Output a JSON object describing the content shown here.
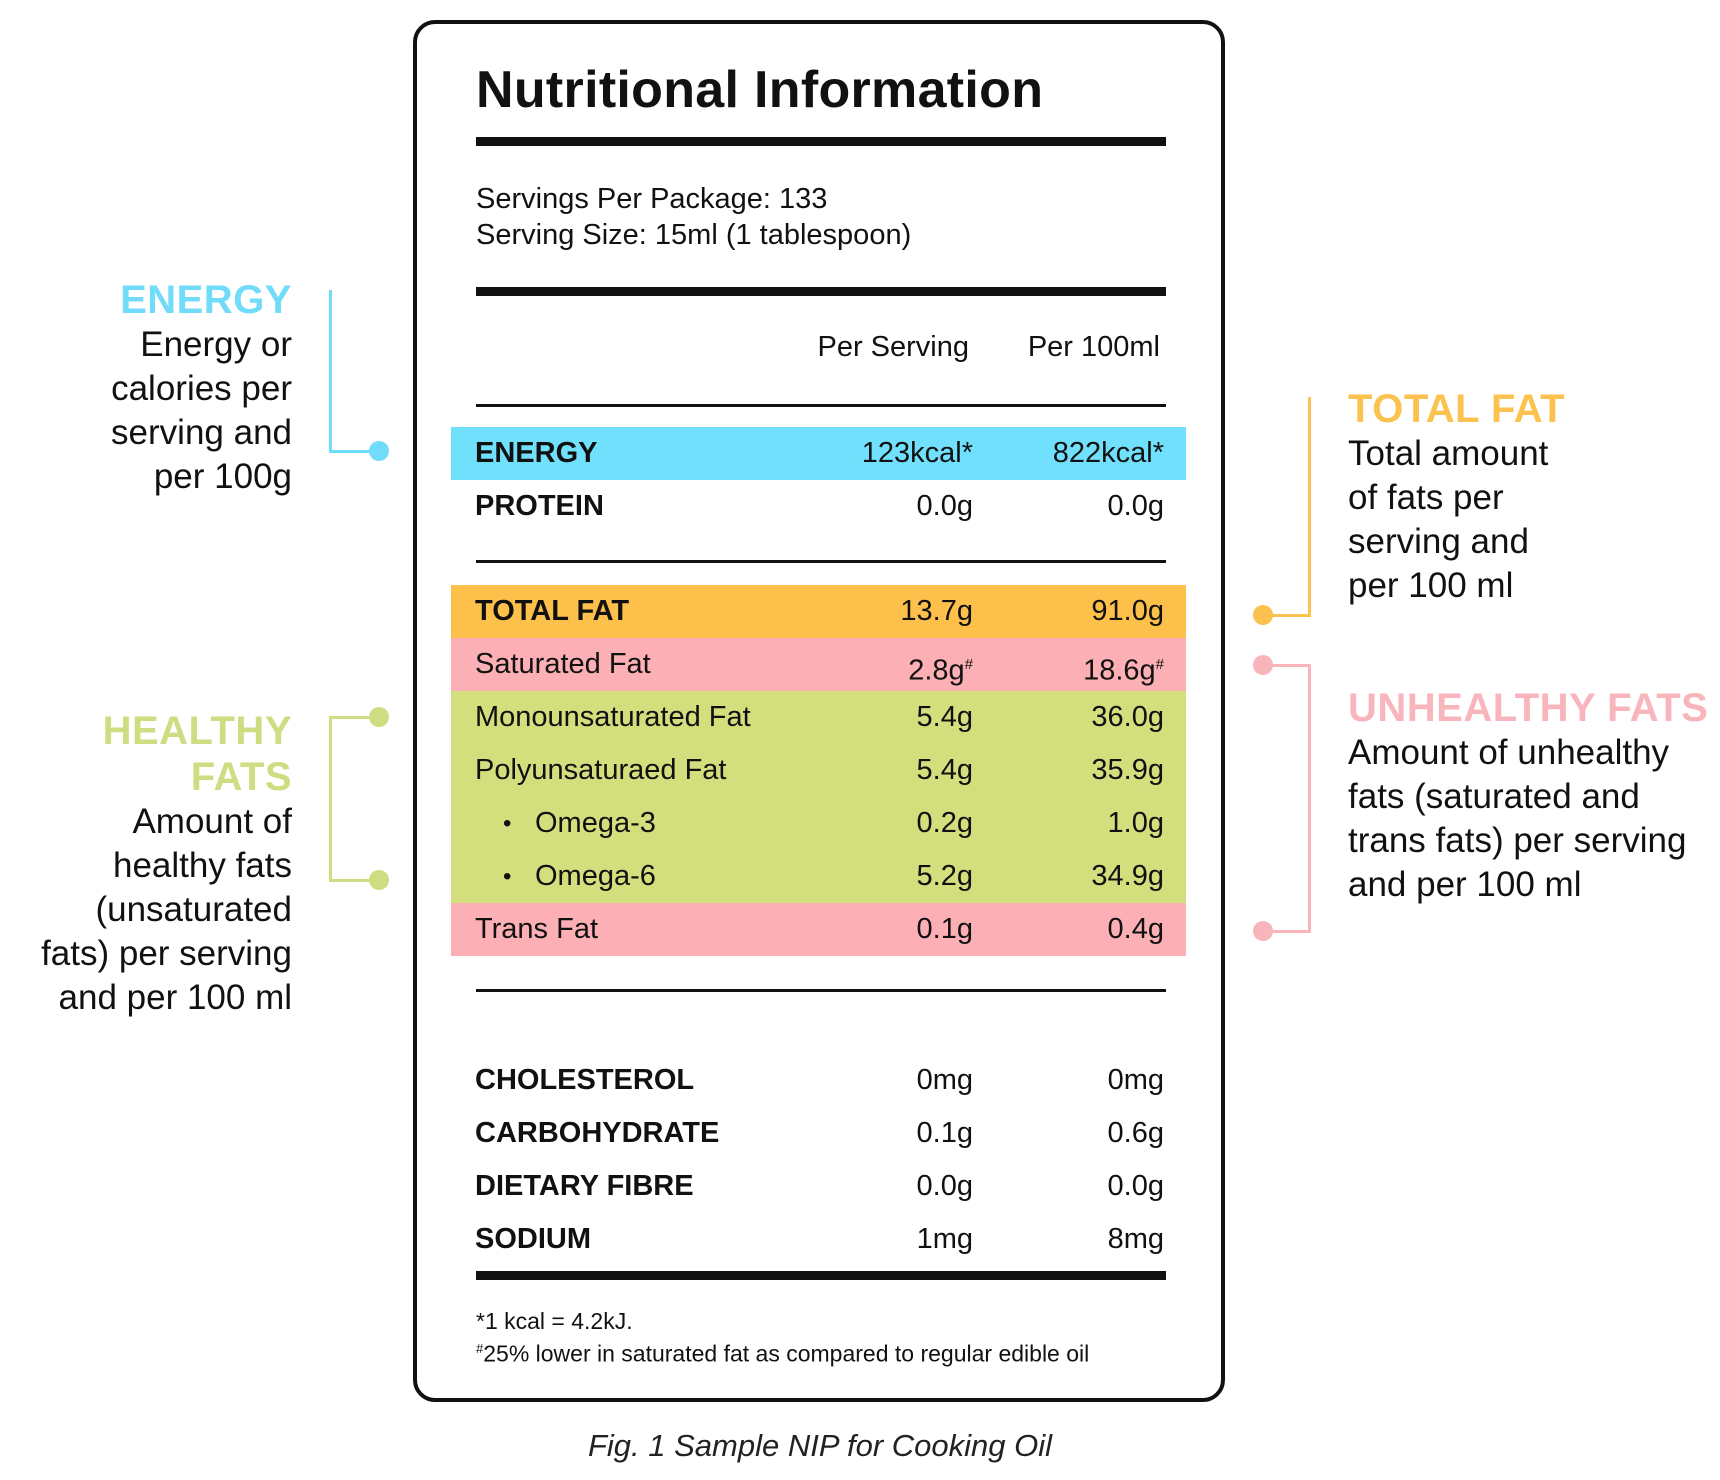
{
  "colors": {
    "energy": "#70e0fc",
    "total_fat": "#fdc04a",
    "unhealthy": "#fcb0b5",
    "healthy": "#d3df7d",
    "energy_label": "#70dcf9",
    "total_fat_label": "#fbc24f",
    "unhealthy_label": "#f9b5bc",
    "healthy_label": "#cedd82"
  },
  "panel": {
    "title": "Nutritional Information",
    "servings_per_package": "Servings Per Package: 133",
    "serving_size": "Serving Size: 15ml (1 tablespoon)",
    "col_per_serving": "Per Serving",
    "col_per_100ml": "Per 100ml",
    "rows": [
      {
        "name": "ENERGY",
        "per_serving": "123kcal*",
        "per_100ml": "822kcal*"
      },
      {
        "name": "PROTEIN",
        "per_serving": "0.0g",
        "per_100ml": "0.0g"
      },
      {
        "name": "TOTAL FAT",
        "per_serving": "13.7g",
        "per_100ml": "91.0g"
      },
      {
        "name": "Saturated Fat",
        "per_serving": "2.8g",
        "per_serving_mark": "#",
        "per_100ml": "18.6g",
        "per_100ml_mark": "#"
      },
      {
        "name": "Monounsaturated Fat",
        "per_serving": "5.4g",
        "per_100ml": "36.0g"
      },
      {
        "name": "Polyunsaturaed Fat",
        "per_serving": "5.4g",
        "per_100ml": "35.9g"
      },
      {
        "name": "Omega-3",
        "per_serving": "0.2g",
        "per_100ml": "1.0g"
      },
      {
        "name": "Omega-6",
        "per_serving": "5.2g",
        "per_100ml": "34.9g"
      },
      {
        "name": "Trans Fat",
        "per_serving": "0.1g",
        "per_100ml": "0.4g"
      },
      {
        "name": "CHOLESTEROL",
        "per_serving": "0mg",
        "per_100ml": "0mg"
      },
      {
        "name": "CARBOHYDRATE",
        "per_serving": "0.1g",
        "per_100ml": "0.6g"
      },
      {
        "name": "DIETARY FIBRE",
        "per_serving": "0.0g",
        "per_100ml": "0.0g"
      },
      {
        "name": "SODIUM",
        "per_serving": "1mg",
        "per_100ml": "8mg"
      }
    ],
    "bullet": "•",
    "footnote1": "*1 kcal = 4.2kJ.",
    "footnote2_mark": "#",
    "footnote2": "25% lower in saturated fat as compared to regular edible oil"
  },
  "callouts": {
    "energy": {
      "heading": "ENERGY",
      "lines": [
        "Energy or",
        "calories per",
        "serving and",
        "per 100g"
      ]
    },
    "healthy": {
      "heading": "HEALTHY FATS",
      "lines": [
        "Amount of",
        "healthy fats",
        "(unsaturated",
        "fats) per serving",
        "and per 100 ml"
      ]
    },
    "total_fat": {
      "heading": "TOTAL FAT",
      "lines": [
        "Total amount",
        "of fats per",
        "serving and",
        "per 100 ml"
      ]
    },
    "unhealthy": {
      "heading": "UNHEALTHY FATS",
      "lines": [
        "Amount of unhealthy",
        "fats (saturated and",
        "trans fats) per serving",
        "and per 100 ml"
      ]
    }
  },
  "caption": "Fig. 1 Sample NIP for Cooking Oil"
}
